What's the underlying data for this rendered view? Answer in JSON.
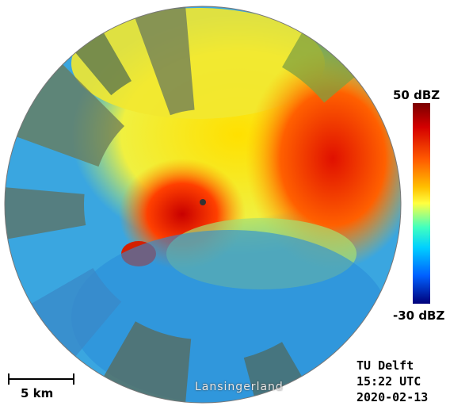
{
  "colorbar": {
    "max_label": "50 dBZ",
    "min_label": "-30 dBZ",
    "colors": [
      "#7a0000",
      "#d40000",
      "#ff5a00",
      "#ffc000",
      "#ffff40",
      "#40ffc0",
      "#00d0ff",
      "#0060ff",
      "#00007a"
    ]
  },
  "scale": {
    "label": "5 km"
  },
  "info": {
    "institution": "TU Delft",
    "time": "15:22 UTC",
    "date": "2020-02-13"
  },
  "map": {
    "place_label": "Lansingerland"
  }
}
